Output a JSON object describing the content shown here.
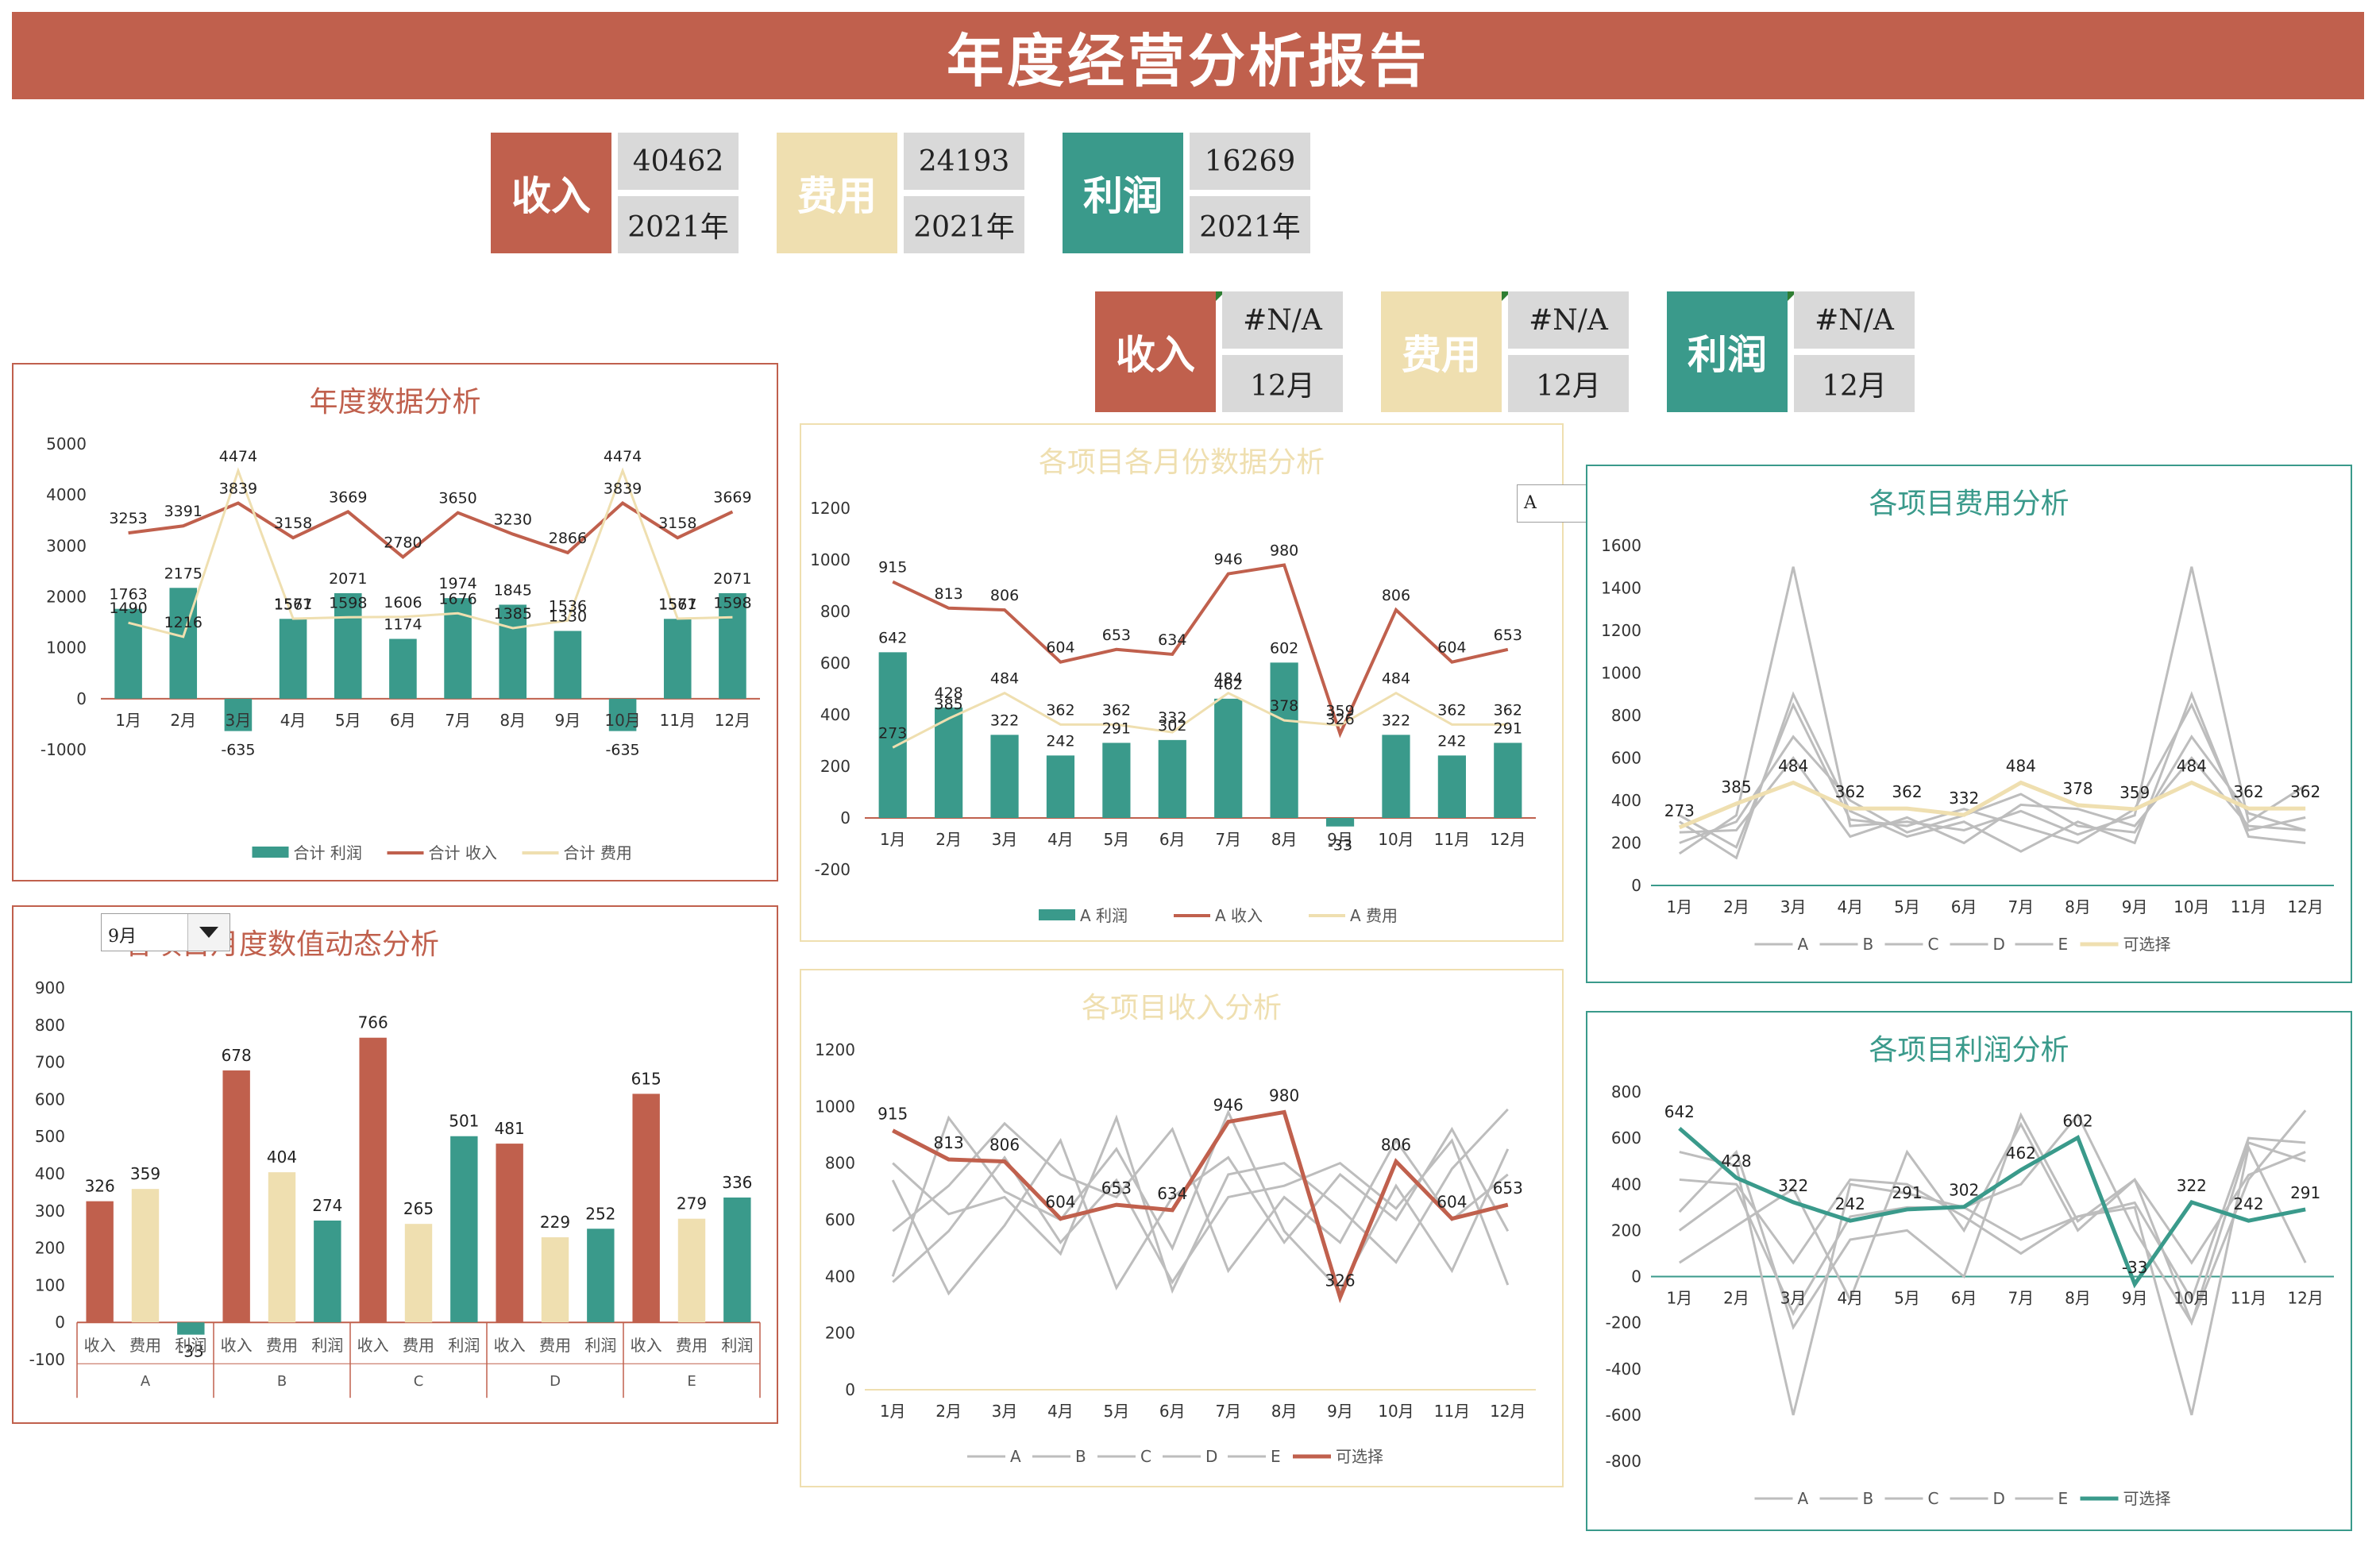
{
  "title": "年度经营分析报告",
  "kpi_year": [
    {
      "label": "收入",
      "value": "40462",
      "period": "2021年",
      "color": "#c0604d"
    },
    {
      "label": "费用",
      "value": "24193",
      "period": "2021年",
      "color": "#efdfb0"
    },
    {
      "label": "利润",
      "value": "16269",
      "period": "2021年",
      "color": "#3a9a8b"
    }
  ],
  "kpi_month": [
    {
      "label": "收入",
      "value": "#N/A",
      "period": "12月",
      "color": "#c0604d"
    },
    {
      "label": "费用",
      "value": "#N/A",
      "period": "12月",
      "color": "#efdfb0"
    },
    {
      "label": "利润",
      "value": "#N/A",
      "period": "12月",
      "color": "#3a9a8b"
    }
  ],
  "dropdowns": {
    "month": "9月",
    "project": "A"
  },
  "colors": {
    "red": "#c0604d",
    "beige": "#efdfb0",
    "teal": "#3a9a8b",
    "gray": "#bdbdbd"
  },
  "chart_data": [
    {
      "id": "annual",
      "type": "bar+line",
      "title": "年度数据分析",
      "categories": [
        "1月",
        "2月",
        "3月",
        "4月",
        "5月",
        "6月",
        "7月",
        "8月",
        "9月",
        "10月",
        "11月",
        "12月"
      ],
      "yticks": [
        -1000,
        0,
        1000,
        2000,
        3000,
        4000,
        5000
      ],
      "ylim": [
        -1000,
        5000
      ],
      "series": [
        {
          "name": "合计 利润",
          "kind": "bar",
          "values": [
            1763,
            2175,
            -635,
            1567,
            2071,
            1174,
            1974,
            1845,
            1330,
            -635,
            1567,
            2071
          ]
        },
        {
          "name": "合计 收入",
          "kind": "line",
          "values": [
            3253,
            3391,
            3839,
            3158,
            3669,
            2780,
            3650,
            3230,
            2866,
            3839,
            3158,
            3669
          ]
        },
        {
          "name": "合计 费用",
          "kind": "line",
          "values": [
            1490,
            1216,
            4474,
            1571,
            1598,
            1606,
            1676,
            1385,
            1536,
            4474,
            1571,
            1598
          ]
        }
      ]
    },
    {
      "id": "monthly",
      "type": "bar+line",
      "title": "各项目各月份数据分析",
      "categories": [
        "1月",
        "2月",
        "3月",
        "4月",
        "5月",
        "6月",
        "7月",
        "8月",
        "9月",
        "10月",
        "11月",
        "12月"
      ],
      "yticks": [
        -200,
        0,
        200,
        400,
        600,
        800,
        1000,
        1200
      ],
      "ylim": [
        -200,
        1200
      ],
      "series": [
        {
          "name": "A 利润",
          "kind": "bar",
          "values": [
            642,
            428,
            322,
            242,
            291,
            302,
            462,
            602,
            -33,
            322,
            242,
            291
          ]
        },
        {
          "name": "A 收入",
          "kind": "line",
          "values": [
            915,
            813,
            806,
            604,
            653,
            634,
            946,
            980,
            326,
            806,
            604,
            653
          ]
        },
        {
          "name": "A 费用",
          "kind": "line",
          "values": [
            273,
            385,
            484,
            362,
            362,
            332,
            484,
            378,
            359,
            484,
            362,
            362
          ]
        }
      ]
    },
    {
      "id": "project_month",
      "type": "bar",
      "title": "各项目月度数值动态分析",
      "groups": [
        "A",
        "B",
        "C",
        "D",
        "E"
      ],
      "subcategories": [
        "收入",
        "费用",
        "利润"
      ],
      "values": [
        [
          326,
          359,
          -33
        ],
        [
          678,
          404,
          274
        ],
        [
          766,
          265,
          501
        ],
        [
          481,
          229,
          252
        ],
        [
          615,
          279,
          336
        ]
      ],
      "yticks": [
        -100,
        0,
        100,
        200,
        300,
        400,
        500,
        600,
        700,
        800,
        900
      ],
      "ylim": [
        -100,
        900
      ]
    },
    {
      "id": "revenue",
      "type": "line",
      "title": "各项目收入分析",
      "categories": [
        "1月",
        "2月",
        "3月",
        "4月",
        "5月",
        "6月",
        "7月",
        "8月",
        "9月",
        "10月",
        "11月",
        "12月"
      ],
      "yticks": [
        0,
        200,
        400,
        600,
        800,
        1000,
        1200
      ],
      "ylim": [
        0,
        1200
      ],
      "legend": [
        "A",
        "B",
        "C",
        "D",
        "E",
        "可选择"
      ],
      "gray_series": [
        [
          800,
          620,
          680,
          480,
          960,
          350,
          760,
          800,
          640,
          450,
          780,
          990
        ],
        [
          400,
          960,
          700,
          600,
          850,
          500,
          980,
          560,
          350,
          720,
          420,
          850
        ],
        [
          740,
          340,
          580,
          880,
          360,
          680,
          820,
          520,
          760,
          600,
          920,
          560
        ],
        [
          560,
          720,
          940,
          760,
          680,
          920,
          420,
          680,
          520,
          880,
          600,
          760
        ],
        [
          380,
          560,
          820,
          520,
          740,
          380,
          680,
          720,
          800,
          640,
          880,
          370
        ]
      ],
      "highlight": [
        915,
        813,
        806,
        604,
        653,
        634,
        946,
        980,
        326,
        806,
        604,
        653
      ]
    },
    {
      "id": "expense",
      "type": "line",
      "title": "各项目费用分析",
      "categories": [
        "1月",
        "2月",
        "3月",
        "4月",
        "5月",
        "6月",
        "7月",
        "8月",
        "9月",
        "10月",
        "11月",
        "12月"
      ],
      "yticks": [
        0,
        200,
        400,
        600,
        800,
        1000,
        1200,
        1400,
        1600
      ],
      "ylim": [
        0,
        1600
      ],
      "legend": [
        "A",
        "B",
        "C",
        "D",
        "E",
        "可选择"
      ],
      "gray_series": [
        [
          150,
          330,
          1500,
          280,
          300,
          260,
          350,
          240,
          330,
          1500,
          300,
          470
        ],
        [
          300,
          130,
          900,
          350,
          230,
          300,
          160,
          300,
          200,
          900,
          230,
          200
        ],
        [
          250,
          260,
          600,
          230,
          320,
          200,
          380,
          360,
          280,
          600,
          280,
          260
        ],
        [
          330,
          180,
          850,
          310,
          280,
          360,
          280,
          200,
          360,
          850,
          260,
          320
        ],
        [
          200,
          300,
          700,
          400,
          250,
          330,
          430,
          280,
          250,
          700,
          340,
          260
        ]
      ],
      "highlight": [
        273,
        385,
        484,
        362,
        362,
        332,
        484,
        378,
        359,
        484,
        362,
        362
      ]
    },
    {
      "id": "profit",
      "type": "line",
      "title": "各项目利润分析",
      "categories": [
        "1月",
        "2月",
        "3月",
        "4月",
        "5月",
        "6月",
        "7月",
        "8月",
        "9月",
        "10月",
        "11月",
        "12月"
      ],
      "yticks": [
        -800,
        -600,
        -400,
        -200,
        0,
        200,
        400,
        600,
        800
      ],
      "ylim": [
        -800,
        800
      ],
      "legend": [
        "A",
        "B",
        "C",
        "D",
        "E",
        "可选择"
      ],
      "gray_series": [
        [
          540,
          480,
          -600,
          400,
          360,
          300,
          160,
          260,
          300,
          -600,
          560,
          60
        ],
        [
          280,
          540,
          -220,
          160,
          200,
          0,
          700,
          240,
          420,
          -200,
          420,
          720
        ],
        [
          60,
          220,
          380,
          -100,
          540,
          200,
          660,
          200,
          420,
          60,
          440,
          540
        ],
        [
          420,
          400,
          60,
          420,
          400,
          260,
          100,
          260,
          320,
          -100,
          600,
          580
        ],
        [
          200,
          380,
          -160,
          260,
          300,
          300,
          400,
          700,
          200,
          -200,
          580,
          500
        ]
      ],
      "highlight": [
        642,
        428,
        322,
        242,
        291,
        302,
        462,
        602,
        -33,
        322,
        242,
        291
      ]
    }
  ]
}
